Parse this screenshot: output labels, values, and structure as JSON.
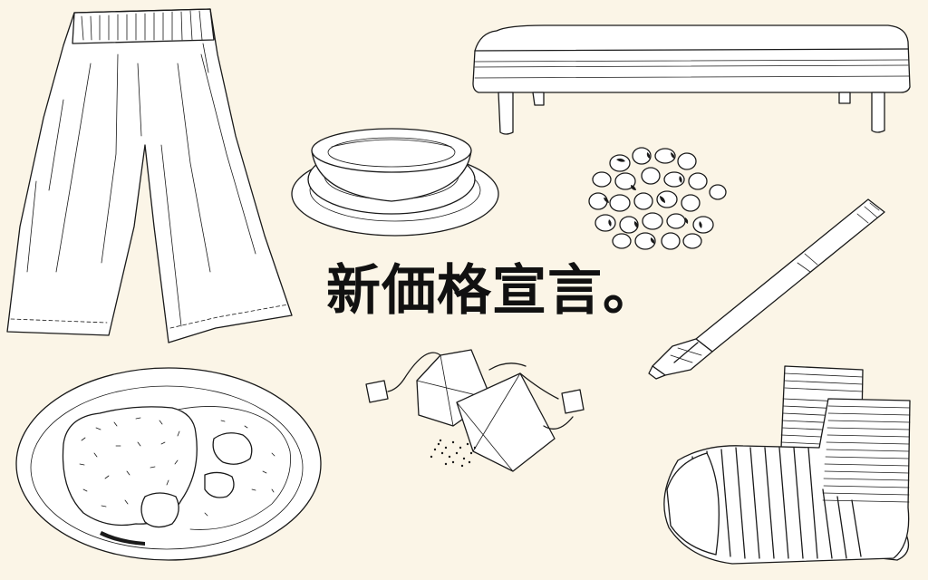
{
  "headline": "新価格宣言。",
  "colors": {
    "background": "#fbf5e7",
    "ink": "#1a1a1a",
    "headline": "#111111"
  },
  "illustrations": [
    "wide-pants-icon",
    "bench-icon",
    "bowl-and-plates-icon",
    "nuts-icon",
    "pen-icon",
    "curry-plate-icon",
    "tea-bags-icon",
    "striped-socks-icon"
  ]
}
